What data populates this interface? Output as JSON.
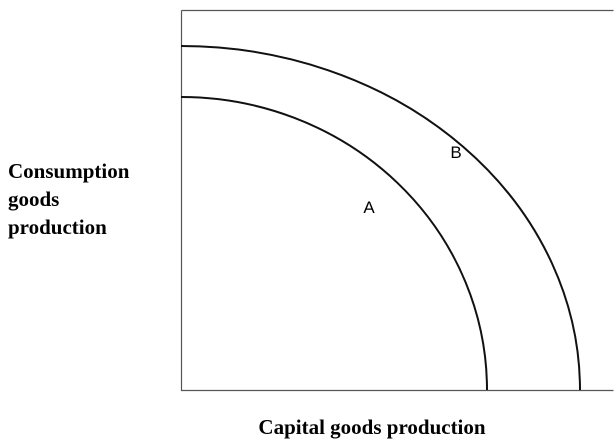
{
  "y_axis_label": {
    "lines": [
      "Consumption",
      "goods",
      "production"
    ]
  },
  "x_axis_label": "Capital goods production",
  "curves": [
    {
      "label": "A"
    },
    {
      "label": "B"
    }
  ]
}
